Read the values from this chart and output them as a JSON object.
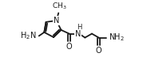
{
  "bg_color": "#ffffff",
  "line_color": "#1a1a1a",
  "line_width": 1.3,
  "font_size": 7.0,
  "figsize": [
    1.94,
    0.72
  ],
  "dpi": 100,
  "xlim": [
    0,
    10.5
  ],
  "ylim": [
    0,
    3.8
  ]
}
